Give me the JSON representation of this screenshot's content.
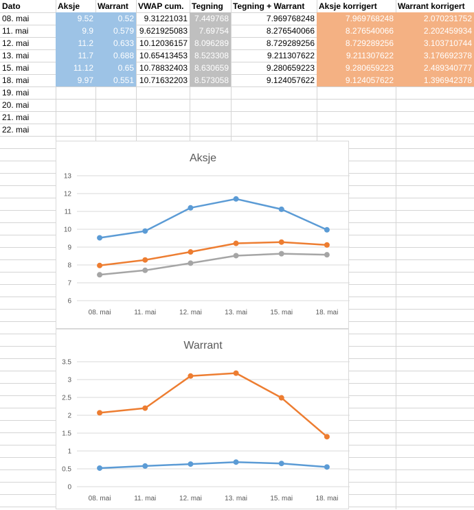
{
  "table": {
    "headers": [
      "Dato",
      "Aksje",
      "Warrant",
      "VWAP cum.",
      "Tegning",
      "Tegning + Warrant",
      "Aksje korrigert",
      "Warrant korrigert"
    ],
    "rows": [
      [
        "08. mai",
        "9.52",
        "0.52",
        "9.31221031",
        "7.449768",
        "7.969768248",
        "7.969768248",
        "2.070231752"
      ],
      [
        "11. mai",
        "9.9",
        "0.579",
        "9.621925083",
        "7.69754",
        "8.276540066",
        "8.276540066",
        "2.202459934"
      ],
      [
        "12. mai",
        "11.2",
        "0.633",
        "10.12036157",
        "8.096289",
        "8.729289256",
        "8.729289256",
        "3.103710744"
      ],
      [
        "13. mai",
        "11.7",
        "0.688",
        "10.65413453",
        "8.523308",
        "9.211307622",
        "9.211307622",
        "3.176692378"
      ],
      [
        "15. mai",
        "11.12",
        "0.65",
        "10.78832403",
        "8.630659",
        "9.280659223",
        "9.280659223",
        "2.489340777"
      ],
      [
        "18. mai",
        "9.97",
        "0.551",
        "10.71632203",
        "8.573058",
        "9.124057622",
        "9.124057622",
        "1.396942378"
      ],
      [
        "19. mai",
        "",
        "",
        "",
        "",
        "",
        "",
        ""
      ],
      [
        "20. mai",
        "",
        "",
        "",
        "",
        "",
        "",
        ""
      ],
      [
        "21. mai",
        "",
        "",
        "",
        "",
        "",
        "",
        ""
      ],
      [
        "22. mai",
        "",
        "",
        "",
        "",
        "",
        "",
        ""
      ]
    ]
  },
  "colors": {
    "aksje_fill": "#9dc3e6",
    "tegning_fill": "#bfbfbf",
    "korrigert_fill": "#f4b183",
    "series_blue": "#5b9bd5",
    "series_orange": "#ed7d31",
    "series_gray": "#a5a5a5"
  },
  "chart_data": [
    {
      "type": "line",
      "title": "Aksje",
      "categories": [
        "08. mai",
        "11. mai",
        "12. mai",
        "13. mai",
        "15. mai",
        "18. mai"
      ],
      "ylim": [
        6,
        13
      ],
      "yticks": [
        "6",
        "7",
        "8",
        "9",
        "10",
        "11",
        "12",
        "13"
      ],
      "grid": true,
      "series": [
        {
          "values": [
            9.52,
            9.9,
            11.2,
            11.7,
            11.12,
            9.97
          ],
          "color": "#5b9bd5"
        },
        {
          "values": [
            7.97,
            8.28,
            8.73,
            9.21,
            9.28,
            9.12
          ],
          "color": "#ed7d31"
        },
        {
          "values": [
            7.45,
            7.7,
            8.1,
            8.52,
            8.63,
            8.57
          ],
          "color": "#a5a5a5"
        }
      ]
    },
    {
      "type": "line",
      "title": "Warrant",
      "categories": [
        "08. mai",
        "11. mai",
        "12. mai",
        "13. mai",
        "15. mai",
        "18. mai"
      ],
      "ylim": [
        0,
        3.5
      ],
      "yticks": [
        "0",
        "0.5",
        "1",
        "1.5",
        "2",
        "2.5",
        "3",
        "3.5"
      ],
      "grid": true,
      "series": [
        {
          "values": [
            0.52,
            0.579,
            0.633,
            0.688,
            0.65,
            0.551
          ],
          "color": "#5b9bd5"
        },
        {
          "values": [
            2.07,
            2.2,
            3.1,
            3.18,
            2.49,
            1.4
          ],
          "color": "#ed7d31"
        }
      ]
    }
  ]
}
